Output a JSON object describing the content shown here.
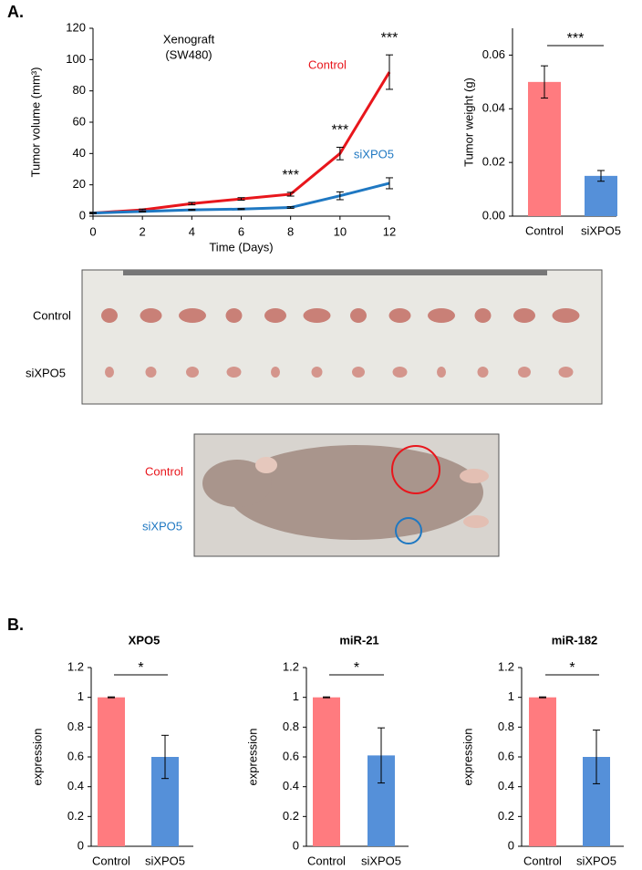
{
  "panel_labels": [
    "A.",
    "B."
  ],
  "chart_data": [
    {
      "type": "line",
      "inset_text": [
        "Xenograft",
        "(SW480)"
      ],
      "x_label": "Time (Days)",
      "y_label": "Tumor volume (mm³)",
      "x": [
        0,
        2,
        4,
        6,
        8,
        10,
        12
      ],
      "xlim": [
        0,
        12
      ],
      "xticks": [
        0,
        2,
        4,
        6,
        8,
        10,
        12
      ],
      "ylim": [
        0,
        120
      ],
      "yticks": [
        0,
        20,
        40,
        60,
        80,
        100,
        120
      ],
      "series": [
        {
          "name": "Control",
          "color": "#e8161c",
          "values": [
            2,
            4,
            8,
            11,
            14,
            40,
            92
          ],
          "errors": [
            0.5,
            0.5,
            0.8,
            0.8,
            1.2,
            4,
            11
          ]
        },
        {
          "name": "siXPO5",
          "color": "#1f78c2",
          "values": [
            2,
            3,
            4,
            4.5,
            5.5,
            13,
            21
          ],
          "errors": [
            0.3,
            0.3,
            0.3,
            0.3,
            0.5,
            2.5,
            3.5
          ]
        }
      ],
      "annotations": [
        {
          "text": "***",
          "x": 8
        },
        {
          "text": "***",
          "x": 10
        },
        {
          "text": "***",
          "x": 12
        }
      ]
    },
    {
      "type": "bar",
      "y_label": "Tumor weight (g)",
      "categories": [
        "Control",
        "siXPO5"
      ],
      "values": [
        0.05,
        0.015
      ],
      "errors": [
        0.006,
        0.002
      ],
      "colors": [
        "#ff7b7f",
        "#5590d9"
      ],
      "ylim": [
        0,
        0.07
      ],
      "yticks": [
        {
          "value": 0,
          "label": "0.00"
        },
        {
          "value": 0.02,
          "label": "0.02"
        },
        {
          "value": 0.04,
          "label": "0.04"
        },
        {
          "value": 0.06,
          "label": "0.06"
        }
      ],
      "significance": "***"
    },
    {
      "type": "bar",
      "title": "XPO5",
      "y_label": "expression",
      "categories": [
        "Control",
        "siXPO5"
      ],
      "values": [
        1,
        0.6
      ],
      "errors": [
        0.003,
        0.145
      ],
      "colors": [
        "#ff7b7f",
        "#5590d9"
      ],
      "ylim": [
        0,
        1.2
      ],
      "yticks": [
        0,
        0.2,
        0.4,
        0.6,
        0.8,
        1,
        1.2
      ],
      "significance": "*"
    },
    {
      "type": "bar",
      "title": "miR-21",
      "y_label": "expression",
      "categories": [
        "Control",
        "siXPO5"
      ],
      "values": [
        1,
        0.61
      ],
      "errors": [
        0.003,
        0.185
      ],
      "colors": [
        "#ff7b7f",
        "#5590d9"
      ],
      "ylim": [
        0,
        1.2
      ],
      "yticks": [
        0,
        0.2,
        0.4,
        0.6,
        0.8,
        1,
        1.2
      ],
      "significance": "*"
    },
    {
      "type": "bar",
      "title": "miR-182",
      "y_label": "expression",
      "categories": [
        "Control",
        "siXPO5"
      ],
      "values": [
        1,
        0.6
      ],
      "errors": [
        0.003,
        0.18
      ],
      "colors": [
        "#ff7b7f",
        "#5590d9"
      ],
      "ylim": [
        0,
        1.2
      ],
      "yticks": [
        0,
        0.2,
        0.4,
        0.6,
        0.8,
        1,
        1.2
      ],
      "significance": "*"
    }
  ],
  "photos": [
    {
      "labels": [
        "Control",
        "siXPO5"
      ]
    },
    {
      "labels": [
        "Control",
        "siXPO5"
      ]
    }
  ]
}
